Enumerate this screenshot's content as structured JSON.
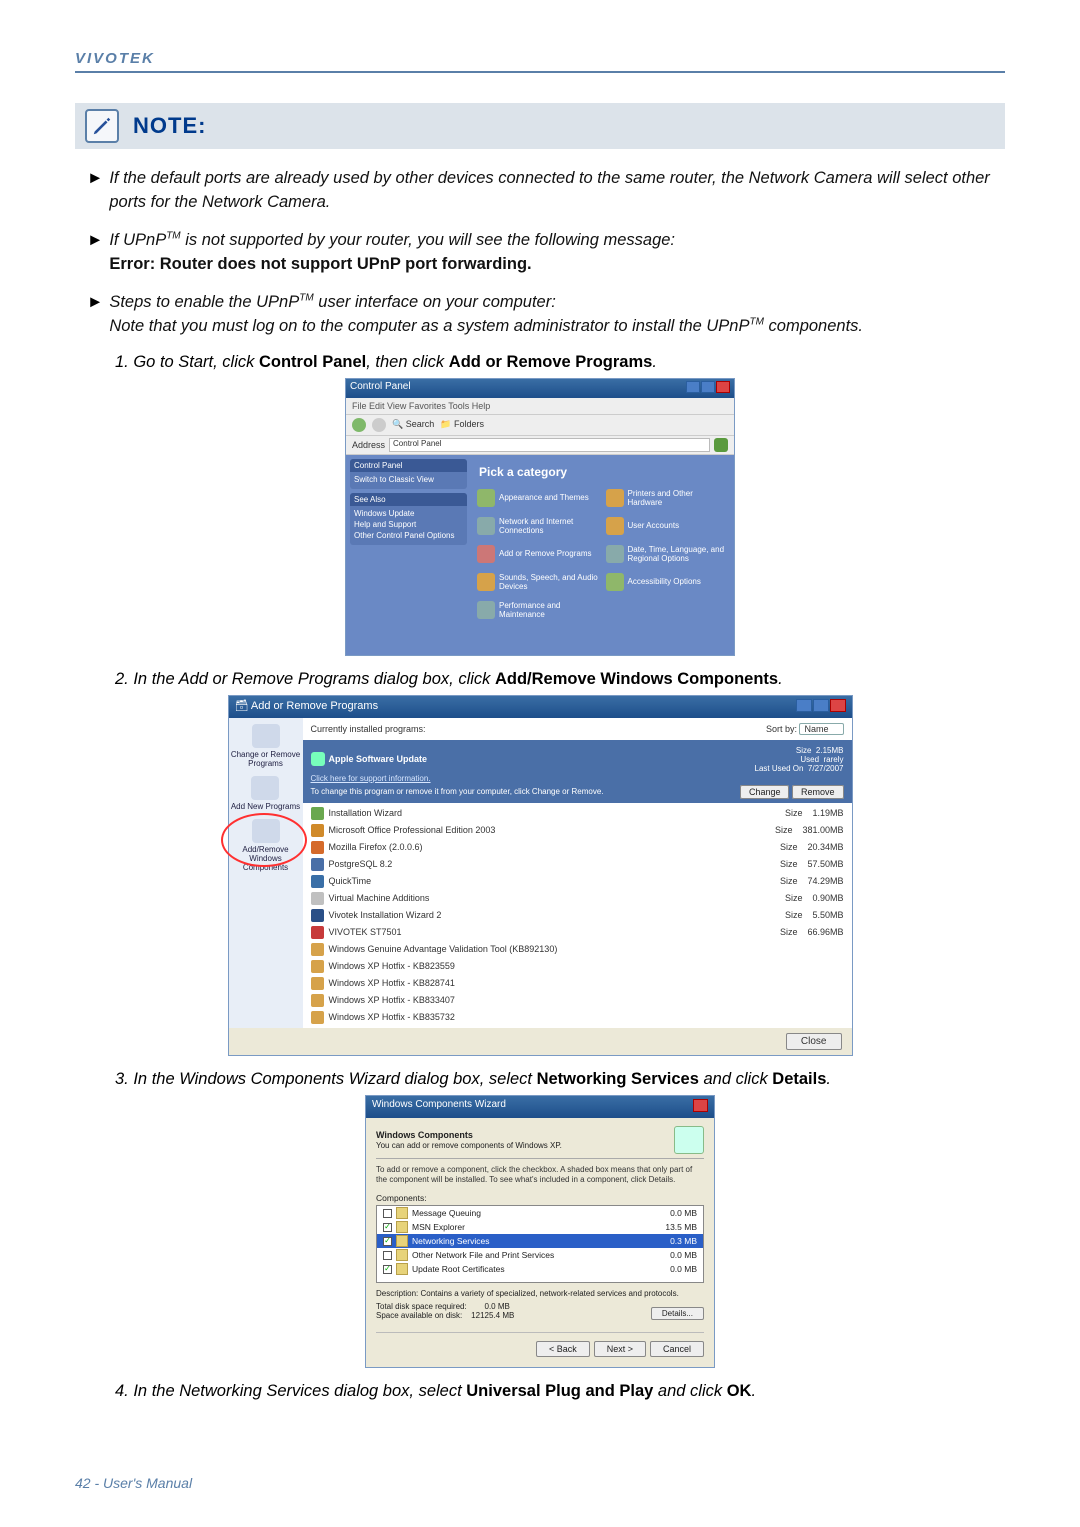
{
  "header": {
    "brand": "VIVOTEK"
  },
  "note": {
    "label": "NOTE:"
  },
  "bullets": {
    "b1": "If the default ports are already used by other devices connected to the same router, the Network Camera will select other ports for the Network Camera.",
    "b2a": "If UPnP",
    "b2b": " is not supported by your router, you will see the following message:",
    "b2err": "Error: Router does not support UPnP port forwarding.",
    "b3a": "Steps to enable the UPnP",
    "b3b": " user interface on your computer:",
    "b3c": "Note that you must log on to the computer as a system administrator to install the UPnP",
    "b3d": " components.",
    "tm": "TM"
  },
  "steps": {
    "s1a": "1. Go to Start, click ",
    "s1b": "Control Panel",
    "s1c": ", then click ",
    "s1d": "Add or Remove Programs",
    "s1e": ".",
    "s2a": "2. In the Add or Remove Programs dialog box, click ",
    "s2b": "Add/Remove Windows Components",
    "s2c": ".",
    "s3a": "3. In the Windows Components Wizard dialog box, select ",
    "s3b": "Networking Services",
    "s3c": " and click ",
    "s3d": "Details",
    "s3e": ".",
    "s4a": "4. In the Networking Services dialog box, select ",
    "s4b": "Universal Plug and Play",
    "s4c": " and click ",
    "s4d": "OK",
    "s4e": "."
  },
  "cp": {
    "title": "Control Panel",
    "menu": "File  Edit  View  Favorites  Tools  Help",
    "back": "Back",
    "search": "Search",
    "folders": "Folders",
    "address_label": "Address",
    "address_value": "Control Panel",
    "go": "Go",
    "side1_hd": "Control Panel",
    "side1_a": "Switch to Classic View",
    "side2_hd": "See Also",
    "side2_a": "Windows Update",
    "side2_b": "Help and Support",
    "side2_c": "Other Control Panel Options",
    "cat_title": "Pick a category",
    "c1": "Appearance and Themes",
    "c2": "Printers and Other Hardware",
    "c3": "Network and Internet Connections",
    "c4": "User Accounts",
    "c5": "Add or Remove Programs",
    "c6": "Date, Time, Language, and Regional Options",
    "c7": "Sounds, Speech, and Audio Devices",
    "c8": "Accessibility Options",
    "c9": "Performance and Maintenance"
  },
  "arp": {
    "title": "Add or Remove Programs",
    "hdr": "Currently installed programs:",
    "sortby": "Sort by:",
    "sortval": "Name",
    "nav1": "Change or Remove Programs",
    "nav2": "Add New Programs",
    "nav3": "Add/Remove Windows Components",
    "hi_name": "Apple Software Update",
    "hi_link": "Click here for support information.",
    "hi_info": "To change this program or remove it from your computer, click Change or Remove.",
    "hi_size_l": "Size",
    "hi_size": "2.15MB",
    "hi_used_l": "Used",
    "hi_used": "rarely",
    "hi_last_l": "Last Used On",
    "hi_last": "7/27/2007",
    "btn_change": "Change",
    "btn_remove": "Remove",
    "col_size": "Size",
    "rows": [
      {
        "name": "Installation Wizard",
        "size": "1.19MB",
        "c": "#6aa84f"
      },
      {
        "name": "Microsoft Office Professional Edition 2003",
        "size": "381.00MB",
        "c": "#d08a2a"
      },
      {
        "name": "Mozilla Firefox (2.0.0.6)",
        "size": "20.34MB",
        "c": "#d56a2a"
      },
      {
        "name": "PostgreSQL 8.2",
        "size": "57.50MB",
        "c": "#4a6fa7"
      },
      {
        "name": "QuickTime",
        "size": "74.29MB",
        "c": "#3a6fa7"
      },
      {
        "name": "Virtual Machine Additions",
        "size": "0.90MB",
        "c": "#c0c0c0"
      },
      {
        "name": "Vivotek Installation Wizard 2",
        "size": "5.50MB",
        "c": "#2a4f87"
      },
      {
        "name": "VIVOTEK ST7501",
        "size": "66.96MB",
        "c": "#c73a3a"
      },
      {
        "name": "Windows Genuine Advantage Validation Tool (KB892130)",
        "size": "",
        "c": "#d6a24a"
      },
      {
        "name": "Windows XP Hotfix - KB823559",
        "size": "",
        "c": "#d6a24a"
      },
      {
        "name": "Windows XP Hotfix - KB828741",
        "size": "",
        "c": "#d6a24a"
      },
      {
        "name": "Windows XP Hotfix - KB833407",
        "size": "",
        "c": "#d6a24a"
      },
      {
        "name": "Windows XP Hotfix - KB835732",
        "size": "",
        "c": "#d6a24a"
      }
    ],
    "close": "Close"
  },
  "wcw": {
    "title": "Windows Components Wizard",
    "hd1": "Windows Components",
    "hd2": "You can add or remove components of Windows XP.",
    "note": "To add or remove a component, click the checkbox. A shaded box means that only part of the component will be installed. To see what's included in a component, click Details.",
    "comp_label": "Components:",
    "rows": [
      {
        "name": "Message Queuing",
        "size": "0.0 MB",
        "checked": false,
        "sel": false
      },
      {
        "name": "MSN Explorer",
        "size": "13.5 MB",
        "checked": true,
        "sel": false
      },
      {
        "name": "Networking Services",
        "size": "0.3 MB",
        "checked": true,
        "sel": true
      },
      {
        "name": "Other Network File and Print Services",
        "size": "0.0 MB",
        "checked": false,
        "sel": false
      },
      {
        "name": "Update Root Certificates",
        "size": "0.0 MB",
        "checked": true,
        "sel": false
      }
    ],
    "desc": "Description:  Contains a variety of specialized, network-related services and protocols.",
    "req_l": "Total disk space required:",
    "req": "0.0 MB",
    "avail_l": "Space available on disk:",
    "avail": "12125.4 MB",
    "details": "Details...",
    "back": "< Back",
    "next": "Next >",
    "cancel": "Cancel"
  },
  "footer": "42 - User's Manual"
}
